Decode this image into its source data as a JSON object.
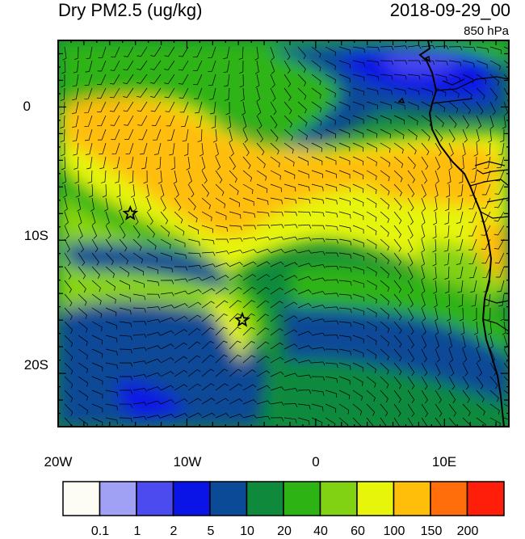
{
  "header": {
    "title": "Dry PM2.5 (ug/kg)",
    "datetime": "2018-09-29_00",
    "level": "850 hPa"
  },
  "map": {
    "lon_labels": [
      "20W",
      "10W",
      "0",
      "10E"
    ],
    "lat_labels": [
      "0",
      "10S",
      "20S"
    ],
    "extent": {
      "lon_min": -20,
      "lon_max": 15,
      "lat_min": -24,
      "lat_max": 5
    },
    "markers": [
      {
        "name": "star",
        "lon": -14.4,
        "lat": -8.0
      },
      {
        "name": "star",
        "lon": -5.7,
        "lat": -16.0
      }
    ]
  },
  "colorbar": {
    "labels": [
      "0.1",
      "1",
      "2",
      "5",
      "10",
      "20",
      "40",
      "60",
      "100",
      "150",
      "200"
    ],
    "colors": [
      "#fdfdf5",
      "#a0a0f5",
      "#4b4bf0",
      "#0a14e6",
      "#0a4a96",
      "#0f8a3c",
      "#2db414",
      "#82d214",
      "#e6f50a",
      "#ffbe0a",
      "#ff6e0a",
      "#ff1e0a"
    ]
  }
}
